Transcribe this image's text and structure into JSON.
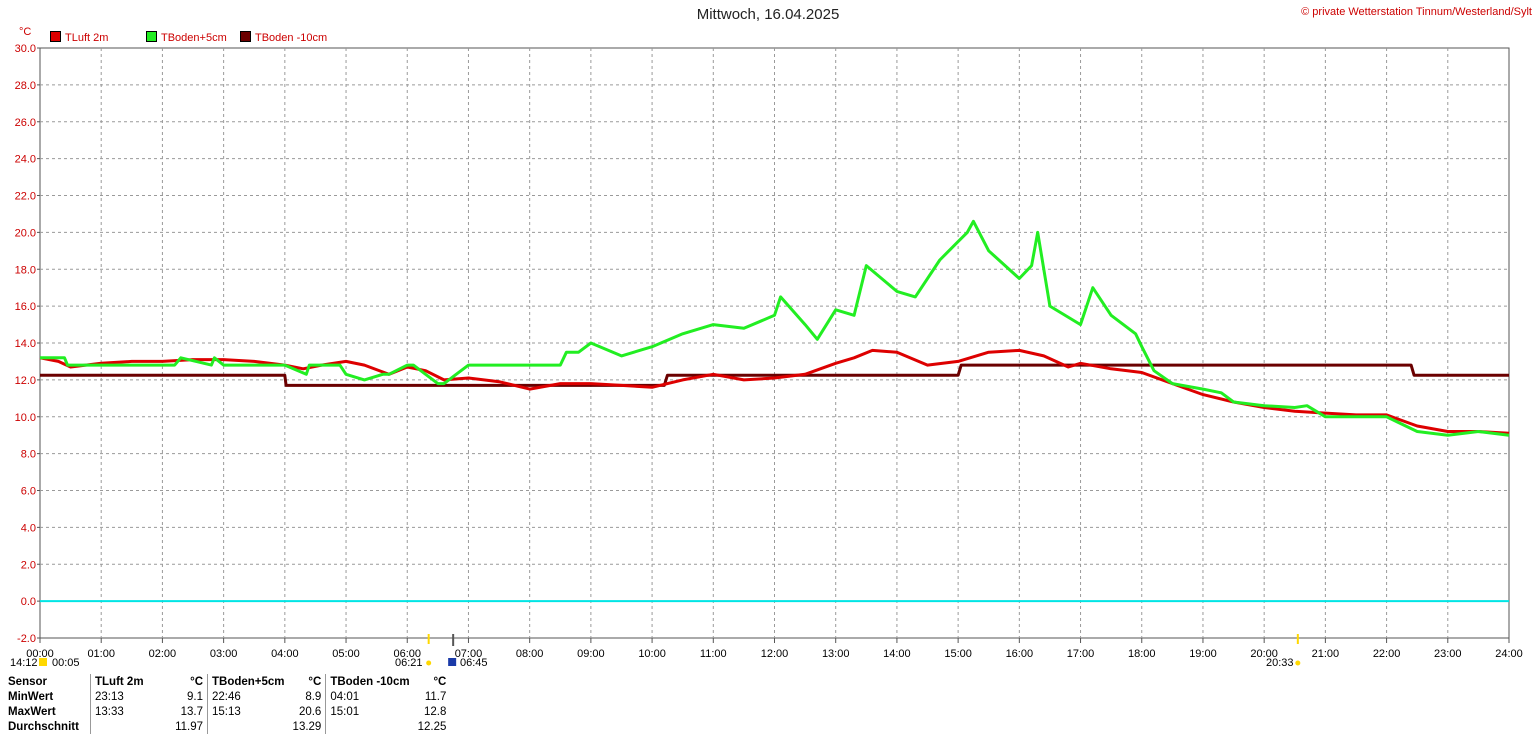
{
  "header": {
    "title": "Mittwoch, 16.04.2025",
    "copyright": "© private Wetterstation Tinnum/Westerland/Sylt",
    "unit": "°C"
  },
  "legend": [
    {
      "label": "TLuft 2m",
      "color": "#dd0000"
    },
    {
      "label": "TBoden+5cm",
      "color": "#22ee22"
    },
    {
      "label": "TBoden -10cm",
      "color": "#6b0000"
    }
  ],
  "markers": {
    "sunrise_time": "06:21",
    "sunset_time": "20:33",
    "moonrise_time": "06:45",
    "moonset_time": "14:12",
    "moon_extra_time": "00:05"
  },
  "chart_data": {
    "type": "line",
    "ylim": [
      -2,
      30
    ],
    "xlim": [
      0,
      24
    ],
    "grid": true,
    "y_ticks": [
      "-2.0",
      "0.0",
      "2.0",
      "4.0",
      "6.0",
      "8.0",
      "10.0",
      "12.0",
      "14.0",
      "16.0",
      "18.0",
      "20.0",
      "22.0",
      "24.0",
      "26.0",
      "28.0",
      "30.0"
    ],
    "x_ticks": [
      "00:00",
      "01:00",
      "02:00",
      "03:00",
      "04:00",
      "05:00",
      "06:00",
      "07:00",
      "08:00",
      "09:00",
      "10:00",
      "11:00",
      "12:00",
      "13:00",
      "14:00",
      "15:00",
      "16:00",
      "17:00",
      "18:00",
      "19:00",
      "20:00",
      "21:00",
      "22:00",
      "23:00",
      "24:00"
    ],
    "reference_line": {
      "y": 0,
      "color": "#00e5e5"
    },
    "series": [
      {
        "name": "TLuft 2m",
        "color": "#dd0000",
        "x": [
          0,
          0.3,
          0.5,
          1,
          1.5,
          2,
          2.5,
          3,
          3.5,
          4,
          4.3,
          4.6,
          5,
          5.3,
          5.7,
          6,
          6.3,
          6.6,
          7,
          7.5,
          8,
          8.5,
          9,
          9.5,
          10,
          10.5,
          11,
          11.5,
          12,
          12.5,
          13,
          13.3,
          13.6,
          14,
          14.5,
          15,
          15.5,
          16,
          16.4,
          16.8,
          17,
          17.5,
          18,
          18.5,
          19,
          19.5,
          20,
          20.5,
          21,
          21.5,
          22,
          22.5,
          23,
          23.5,
          24
        ],
        "y": [
          13.2,
          13.0,
          12.7,
          12.9,
          13.0,
          13.0,
          13.1,
          13.1,
          13.0,
          12.8,
          12.6,
          12.8,
          13.0,
          12.8,
          12.3,
          12.7,
          12.5,
          12.0,
          12.1,
          11.9,
          11.5,
          11.8,
          11.8,
          11.7,
          11.6,
          12.0,
          12.3,
          12.0,
          12.1,
          12.3,
          12.9,
          13.2,
          13.6,
          13.5,
          12.8,
          13.0,
          13.5,
          13.6,
          13.3,
          12.7,
          12.9,
          12.6,
          12.4,
          11.8,
          11.2,
          10.8,
          10.5,
          10.3,
          10.2,
          10.1,
          10.1,
          9.5,
          9.2,
          9.2,
          9.1
        ]
      },
      {
        "name": "TBoden+5cm",
        "color": "#22ee22",
        "x": [
          0,
          0.4,
          0.45,
          1.5,
          2.2,
          2.3,
          2.8,
          2.85,
          3,
          4,
          4.35,
          4.4,
          4.9,
          5,
          5.3,
          5.6,
          5.7,
          6,
          6.1,
          6.3,
          6.5,
          6.6,
          6.8,
          7,
          7.2,
          7.3,
          8,
          8.5,
          8.6,
          8.8,
          9,
          9.5,
          10,
          10.5,
          11,
          11.5,
          12,
          12.1,
          12.5,
          12.7,
          13,
          13.3,
          13.5,
          14,
          14.3,
          14.7,
          15,
          15.15,
          15.25,
          15.5,
          16,
          16.2,
          16.3,
          16.5,
          17,
          17.2,
          17.5,
          17.9,
          18,
          18.2,
          18.5,
          19,
          19.3,
          19.5,
          20,
          20.5,
          20.7,
          21,
          22,
          22.5,
          23,
          23.5,
          24
        ],
        "y": [
          13.2,
          13.2,
          12.8,
          12.8,
          12.8,
          13.2,
          12.8,
          13.2,
          12.8,
          12.8,
          12.3,
          12.8,
          12.8,
          12.3,
          12.0,
          12.3,
          12.3,
          12.8,
          12.8,
          12.3,
          11.8,
          11.8,
          12.3,
          12.8,
          12.8,
          12.8,
          12.8,
          12.8,
          13.5,
          13.5,
          14.0,
          13.3,
          13.8,
          14.5,
          15.0,
          14.8,
          15.5,
          16.5,
          15.0,
          14.2,
          15.8,
          15.5,
          18.2,
          16.8,
          16.5,
          18.5,
          19.5,
          20.0,
          20.6,
          19.0,
          17.5,
          18.2,
          20.0,
          16.0,
          15.0,
          17.0,
          15.5,
          14.5,
          13.8,
          12.5,
          11.8,
          11.5,
          11.3,
          10.8,
          10.6,
          10.5,
          10.6,
          10.0,
          10.0,
          9.2,
          9.0,
          9.2,
          9.0
        ]
      },
      {
        "name": "TBoden -10cm",
        "color": "#6b0000",
        "x": [
          0,
          4,
          4.02,
          10.2,
          10.25,
          15,
          15.05,
          22.4,
          22.45,
          24
        ],
        "y": [
          12.25,
          12.25,
          11.7,
          11.7,
          12.25,
          12.25,
          12.8,
          12.8,
          12.25,
          12.25
        ]
      }
    ]
  },
  "stats": {
    "header": {
      "sensor": "Sensor",
      "col1": "TLuft 2m",
      "unit1": "°C",
      "col2": "TBoden+5cm",
      "unit2": "°C",
      "col3": "TBoden -10cm",
      "unit3": "°C"
    },
    "rows": [
      {
        "label": "MinWert",
        "t1": "23:13",
        "v1": "9.1",
        "t2": "22:46",
        "v2": "8.9",
        "t3": "04:01",
        "v3": "11.7"
      },
      {
        "label": "MaxWert",
        "t1": "13:33",
        "v1": "13.7",
        "t2": "15:13",
        "v2": "20.6",
        "t3": "15:01",
        "v3": "12.8"
      },
      {
        "label": "Durchschnitt",
        "t1": "",
        "v1": "11.97",
        "t2": "",
        "v2": "13.29",
        "t3": "",
        "v3": "12.25"
      }
    ]
  }
}
